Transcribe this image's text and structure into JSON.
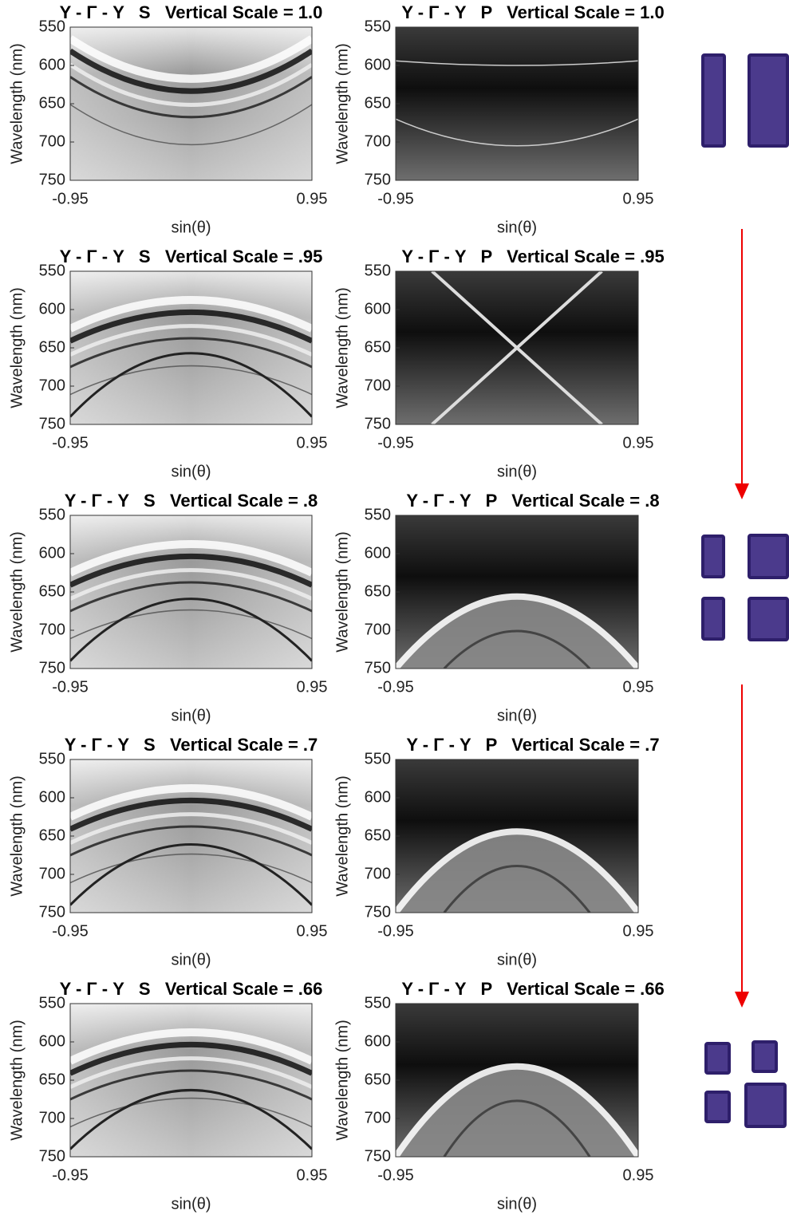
{
  "chart_data": [
    {
      "type": "heatmap",
      "title": "Y - Γ - Y   S   Vertical Scale = 1.0",
      "xlabel": "sin(θ)",
      "ylabel": "Wavelength (nm)",
      "xlim": [
        -0.95,
        0.95
      ],
      "xticks": [
        -0.95,
        0.95
      ],
      "ylim": [
        750,
        550
      ],
      "yticks": [
        550,
        600,
        650,
        700,
        750
      ],
      "colormap": "gray"
    },
    {
      "type": "heatmap",
      "title": "Y - Γ - Y   P   Vertical Scale = 1.0",
      "xlabel": "sin(θ)",
      "ylabel": "Wavelength (nm)",
      "xlim": [
        -0.95,
        0.95
      ],
      "xticks": [
        -0.95,
        0.95
      ],
      "ylim": [
        750,
        550
      ],
      "yticks": [
        550,
        600,
        650,
        700,
        750
      ],
      "colormap": "gray"
    },
    {
      "type": "heatmap",
      "title": "Y - Γ - Y   S   Vertical Scale = .95",
      "xlabel": "sin(θ)",
      "ylabel": "Wavelength (nm)",
      "xlim": [
        -0.95,
        0.95
      ],
      "xticks": [
        -0.95,
        0.95
      ],
      "ylim": [
        750,
        550
      ],
      "yticks": [
        550,
        600,
        650,
        700,
        750
      ],
      "colormap": "gray"
    },
    {
      "type": "heatmap",
      "title": "Y - Γ - Y   P   Vertical Scale = .95",
      "xlabel": "sin(θ)",
      "ylabel": "Wavelength (nm)",
      "xlim": [
        -0.95,
        0.95
      ],
      "xticks": [
        -0.95,
        0.95
      ],
      "ylim": [
        750,
        550
      ],
      "yticks": [
        550,
        600,
        650,
        700,
        750
      ],
      "colormap": "gray"
    },
    {
      "type": "heatmap",
      "title": "Y - Γ - Y   S   Vertical Scale = .8",
      "xlabel": "sin(θ)",
      "ylabel": "Wavelength (nm)",
      "xlim": [
        -0.95,
        0.95
      ],
      "xticks": [
        -0.95,
        0.95
      ],
      "ylim": [
        750,
        550
      ],
      "yticks": [
        550,
        600,
        650,
        700,
        750
      ],
      "colormap": "gray"
    },
    {
      "type": "heatmap",
      "title": "Y - Γ - Y   P   Vertical Scale = .8",
      "xlabel": "sin(θ)",
      "ylabel": "Wavelength (nm)",
      "xlim": [
        -0.95,
        0.95
      ],
      "xticks": [
        -0.95,
        0.95
      ],
      "ylim": [
        750,
        550
      ],
      "yticks": [
        550,
        600,
        650,
        700,
        750
      ],
      "colormap": "gray"
    },
    {
      "type": "heatmap",
      "title": "Y - Γ - Y   S   Vertical Scale = .7",
      "xlabel": "sin(θ)",
      "ylabel": "Wavelength (nm)",
      "xlim": [
        -0.95,
        0.95
      ],
      "xticks": [
        -0.95,
        0.95
      ],
      "ylim": [
        750,
        550
      ],
      "yticks": [
        550,
        600,
        650,
        700,
        750
      ],
      "colormap": "gray"
    },
    {
      "type": "heatmap",
      "title": "Y - Γ - Y   P   Vertical Scale = .7",
      "xlabel": "sin(θ)",
      "ylabel": "Wavelength (nm)",
      "xlim": [
        -0.95,
        0.95
      ],
      "xticks": [
        -0.95,
        0.95
      ],
      "ylim": [
        750,
        550
      ],
      "yticks": [
        550,
        600,
        650,
        700,
        750
      ],
      "colormap": "gray"
    },
    {
      "type": "heatmap",
      "title": "Y - Γ - Y   S   Vertical Scale = .66",
      "xlabel": "sin(θ)",
      "ylabel": "Wavelength (nm)",
      "xlim": [
        -0.95,
        0.95
      ],
      "xticks": [
        -0.95,
        0.95
      ],
      "ylim": [
        750,
        550
      ],
      "yticks": [
        550,
        600,
        650,
        700,
        750
      ],
      "colormap": "gray"
    },
    {
      "type": "heatmap",
      "title": "Y - Γ - Y   P   Vertical Scale = .66",
      "xlabel": "sin(θ)",
      "ylabel": "Wavelength (nm)",
      "xlim": [
        -0.95,
        0.95
      ],
      "xticks": [
        -0.95,
        0.95
      ],
      "ylim": [
        750,
        550
      ],
      "yticks": [
        550,
        600,
        650,
        700,
        750
      ],
      "colormap": "gray"
    }
  ]
}
